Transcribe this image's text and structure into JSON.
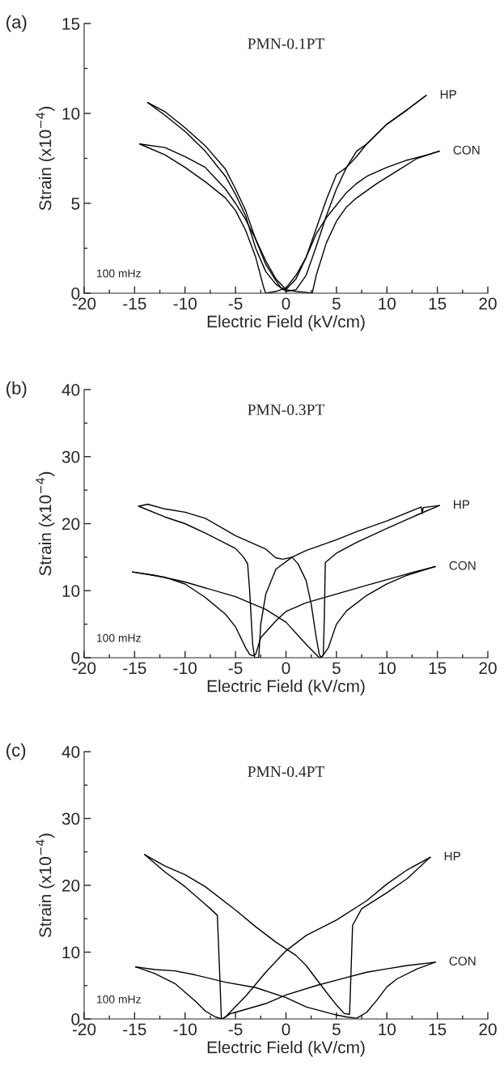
{
  "chart_data": [
    {
      "type": "line",
      "title": "PMN-0.1PT",
      "xlabel": "Electric Field (kV/cm)",
      "ylabel": "Strain (x10$^{−4}$)",
      "annotations": [
        "(a)",
        "100 mHz"
      ],
      "xlim": [
        -20,
        20
      ],
      "ylim": [
        0,
        15
      ],
      "xticks": [
        -20,
        {
          "value": -17.5,
          "label": null
        },
        -15,
        {
          "value": -12.5,
          "label": null
        },
        -10,
        {
          "value": -7.5,
          "label": null
        },
        -5,
        {
          "value": -2.5,
          "label": null
        },
        0,
        {
          "value": 2.5,
          "label": null
        },
        5,
        {
          "value": 7.5,
          "label": null
        },
        10,
        {
          "value": 12.5,
          "label": null
        },
        15,
        {
          "value": 17.5,
          "label": null
        },
        20
      ],
      "yticks": [
        0,
        {
          "value": 2.5,
          "label": null
        },
        5,
        {
          "value": 7.5,
          "label": null
        },
        10,
        {
          "value": 12.5,
          "label": null
        },
        15
      ],
      "grid": false,
      "legend": false,
      "marker": "none",
      "line_style": "solid",
      "series": [
        {
          "name": "HP",
          "color": "#000000",
          "x": [
            13.9,
            12,
            10,
            8,
            7,
            6,
            5,
            4,
            3,
            2,
            1,
            0,
            -0.5,
            -1,
            -2,
            -3,
            -4,
            -5,
            -6,
            -8,
            -10,
            -12,
            -13.7
          ],
          "values": [
            11.0,
            10.2,
            9.4,
            8.3,
            7.9,
            7.0,
            6.6,
            5.2,
            3.6,
            2.0,
            0.8,
            0.2,
            0.3,
            0.7,
            1.6,
            3.0,
            4.6,
            5.8,
            6.9,
            8.2,
            9.2,
            10.1,
            10.6
          ]
        },
        {
          "color": "#000000",
          "x": [
            -13.7,
            -12,
            -10,
            -8,
            -6,
            -5,
            -4,
            -3,
            -2,
            -1,
            0,
            1,
            2,
            3,
            4,
            5,
            6,
            7,
            8,
            10,
            12,
            13.9
          ],
          "values": [
            10.6,
            9.9,
            9.0,
            7.9,
            6.5,
            5.5,
            4.3,
            2.5,
            1.2,
            0.5,
            0.1,
            0.2,
            1.0,
            2.6,
            4.3,
            5.8,
            7.0,
            7.6,
            8.3,
            9.4,
            10.2,
            11.0
          ]
        },
        {
          "name": "CON",
          "color": "#000000",
          "x": [
            -14.5,
            -12,
            -10,
            -8,
            -6,
            -5,
            -4,
            -3,
            -2.2,
            -2,
            -1,
            0,
            1,
            2,
            3,
            4,
            5,
            6,
            7,
            8,
            10,
            12,
            14,
            15.2
          ],
          "values": [
            8.3,
            7.7,
            7.0,
            6.2,
            5.3,
            4.6,
            3.5,
            2.0,
            0.3,
            0,
            0.1,
            0.3,
            1.0,
            2.0,
            3.3,
            4.2,
            4.9,
            5.6,
            6.1,
            6.5,
            7.0,
            7.4,
            7.7,
            7.9
          ]
        },
        {
          "color": "#000000",
          "x": [
            15.2,
            13,
            11,
            9,
            7,
            6,
            5,
            4,
            3,
            2.6,
            2,
            1,
            0,
            -1,
            -2,
            -3,
            -4,
            -5,
            -6,
            -8,
            -10,
            -12,
            -14.5
          ],
          "values": [
            7.9,
            7.5,
            6.8,
            6.1,
            5.3,
            4.8,
            4.0,
            2.8,
            1.0,
            0,
            0.05,
            0.1,
            0.2,
            0.8,
            1.8,
            3.0,
            4.1,
            5.0,
            5.8,
            7.0,
            7.6,
            8.1,
            8.3
          ]
        }
      ]
    },
    {
      "type": "line",
      "title": "PMN-0.3PT",
      "xlabel": "Electric Field (kV/cm)",
      "ylabel": "Strain (x10$^{−4}$)",
      "annotations": [
        "(b)",
        "100 mHz"
      ],
      "xlim": [
        -20,
        20
      ],
      "ylim": [
        0,
        40
      ],
      "xticks": [
        -20,
        {
          "value": -17.5,
          "label": null
        },
        -15,
        {
          "value": -12.5,
          "label": null
        },
        -10,
        {
          "value": -7.5,
          "label": null
        },
        -5,
        {
          "value": -2.5,
          "label": null
        },
        0,
        {
          "value": 2.5,
          "label": null
        },
        5,
        {
          "value": 7.5,
          "label": null
        },
        10,
        {
          "value": 12.5,
          "label": null
        },
        15,
        {
          "value": 17.5,
          "label": null
        },
        20
      ],
      "yticks": [
        0,
        {
          "value": 5,
          "label": null
        },
        10,
        {
          "value": 15,
          "label": null
        },
        20,
        {
          "value": 25,
          "label": null
        },
        30,
        {
          "value": 35,
          "label": null
        },
        40
      ],
      "grid": false,
      "legend": false,
      "marker": "none",
      "line_style": "solid",
      "series": [
        {
          "name": "HP",
          "color": "#000000",
          "x": [
            -14.6,
            -13.7,
            -12,
            -10,
            -8,
            -5,
            -2,
            -1,
            -0.3,
            0.6,
            1.2,
            2,
            2.5,
            3,
            3.3,
            3.5,
            3.7,
            3.8,
            3.9,
            5,
            7,
            10,
            13,
            15.2
          ],
          "values": [
            22.6,
            22.9,
            22.2,
            21.7,
            20.8,
            18.2,
            16.2,
            14.9,
            14.7,
            15,
            14,
            11.5,
            8,
            3,
            0.5,
            0,
            0.5,
            6,
            14.2,
            15.6,
            17.2,
            19.3,
            21.3,
            22.7
          ]
        },
        {
          "color": "#000000",
          "x": [
            15.2,
            13.6,
            13.5,
            13.4,
            10,
            7,
            5,
            2,
            0.6,
            -1,
            -2,
            -2.5,
            -2.7,
            -3.1,
            -3.3,
            -3.6,
            -3.8,
            -4.2,
            -5,
            -8,
            -10,
            -12,
            -14.6
          ],
          "values": [
            22.7,
            22.4,
            21.5,
            22.5,
            20.4,
            18.8,
            17.6,
            16,
            15,
            13.2,
            9.5,
            5,
            0,
            0,
            2,
            10,
            14,
            15,
            16.3,
            18.6,
            20,
            21,
            22.6
          ]
        },
        {
          "name": "CON",
          "color": "#000000",
          "x": [
            -15.2,
            -12,
            -10,
            -8,
            -6,
            -5,
            -4,
            -3.6,
            -3.3,
            -3,
            -2.5,
            -1,
            0,
            2,
            5,
            8,
            12,
            14.8
          ],
          "values": [
            12.8,
            12,
            11,
            9,
            6.5,
            4.6,
            1.5,
            0.5,
            0.3,
            0.5,
            3,
            5.5,
            6.9,
            8.2,
            9.5,
            10.8,
            12.5,
            13.6
          ]
        },
        {
          "color": "#000000",
          "x": [
            14.8,
            12,
            10,
            8,
            6,
            5,
            4.2,
            3.6,
            3.3,
            2,
            0,
            -2,
            -5,
            -10,
            -13,
            -15.2
          ],
          "values": [
            13.6,
            12.3,
            11,
            9.3,
            7,
            5,
            1.5,
            0.2,
            0,
            2,
            5.3,
            7.2,
            9.1,
            11.3,
            12.3,
            12.8
          ]
        }
      ]
    },
    {
      "type": "line",
      "title": "PMN-0.4PT",
      "xlabel": "Electric Field (kV/cm)",
      "ylabel": "Strain (x10$^{−4}$)",
      "annotations": [
        "(c)",
        "100 mHz"
      ],
      "xlim": [
        -20,
        20
      ],
      "ylim": [
        0,
        40
      ],
      "xticks": [
        -20,
        {
          "value": -17.5,
          "label": null
        },
        -15,
        {
          "value": -12.5,
          "label": null
        },
        -10,
        {
          "value": -7.5,
          "label": null
        },
        -5,
        {
          "value": -2.5,
          "label": null
        },
        0,
        {
          "value": 2.5,
          "label": null
        },
        5,
        {
          "value": 7.5,
          "label": null
        },
        10,
        {
          "value": 12.5,
          "label": null
        },
        15,
        {
          "value": 17.5,
          "label": null
        },
        20
      ],
      "yticks": [
        0,
        {
          "value": 5,
          "label": null
        },
        10,
        {
          "value": 15,
          "label": null
        },
        20,
        {
          "value": 25,
          "label": null
        },
        30,
        {
          "value": 35,
          "label": null
        },
        40
      ],
      "grid": false,
      "legend": false,
      "marker": "none",
      "line_style": "solid",
      "series": [
        {
          "name": "HP",
          "color": "#000000",
          "x": [
            -14,
            -12,
            -10,
            -8,
            -5,
            -3,
            -1,
            0,
            1,
            2,
            3,
            4,
            5,
            5.8,
            6.3,
            6.4,
            6.6,
            7.5,
            10,
            12,
            14.3
          ],
          "values": [
            24.6,
            22.9,
            21.6,
            19.8,
            16.3,
            13.8,
            11.5,
            10.5,
            9.5,
            8,
            6,
            4,
            2.1,
            0.8,
            0.7,
            5,
            14,
            16.5,
            18.9,
            21,
            24.2
          ]
        },
        {
          "color": "#000000",
          "x": [
            14.3,
            12,
            10,
            8,
            5,
            2,
            0,
            -2,
            -4,
            -6,
            -6.4,
            -6.6,
            -6.8,
            -7.5,
            -10,
            -12,
            -14
          ],
          "values": [
            24.2,
            22.3,
            20.2,
            17.7,
            14.8,
            12.5,
            10.2,
            7,
            3.4,
            0.3,
            0,
            8,
            15.5,
            16.5,
            19.8,
            22,
            24.6
          ]
        },
        {
          "name": "CON",
          "color": "#000000",
          "x": [
            -14.9,
            -13,
            -11,
            -9,
            -8,
            -7,
            -6.3,
            -5.5,
            -5,
            -2,
            0,
            3,
            5,
            8,
            10,
            12,
            14.8
          ],
          "values": [
            7.8,
            6.8,
            5.3,
            2.7,
            1.2,
            0.3,
            0,
            0.8,
            1,
            2.3,
            3.6,
            5,
            5.8,
            7,
            7.5,
            8,
            8.5
          ]
        },
        {
          "color": "#000000",
          "x": [
            14.8,
            13,
            11,
            10,
            9,
            8,
            7,
            6,
            5,
            2,
            0,
            -3,
            -6,
            -9,
            -11,
            -13,
            -14.9
          ],
          "values": [
            8.5,
            7.5,
            6,
            4.8,
            2.8,
            1,
            0.1,
            0.3,
            0.6,
            1.8,
            3.2,
            4.7,
            5.5,
            6.6,
            7.2,
            7.4,
            7.8
          ]
        }
      ]
    }
  ]
}
